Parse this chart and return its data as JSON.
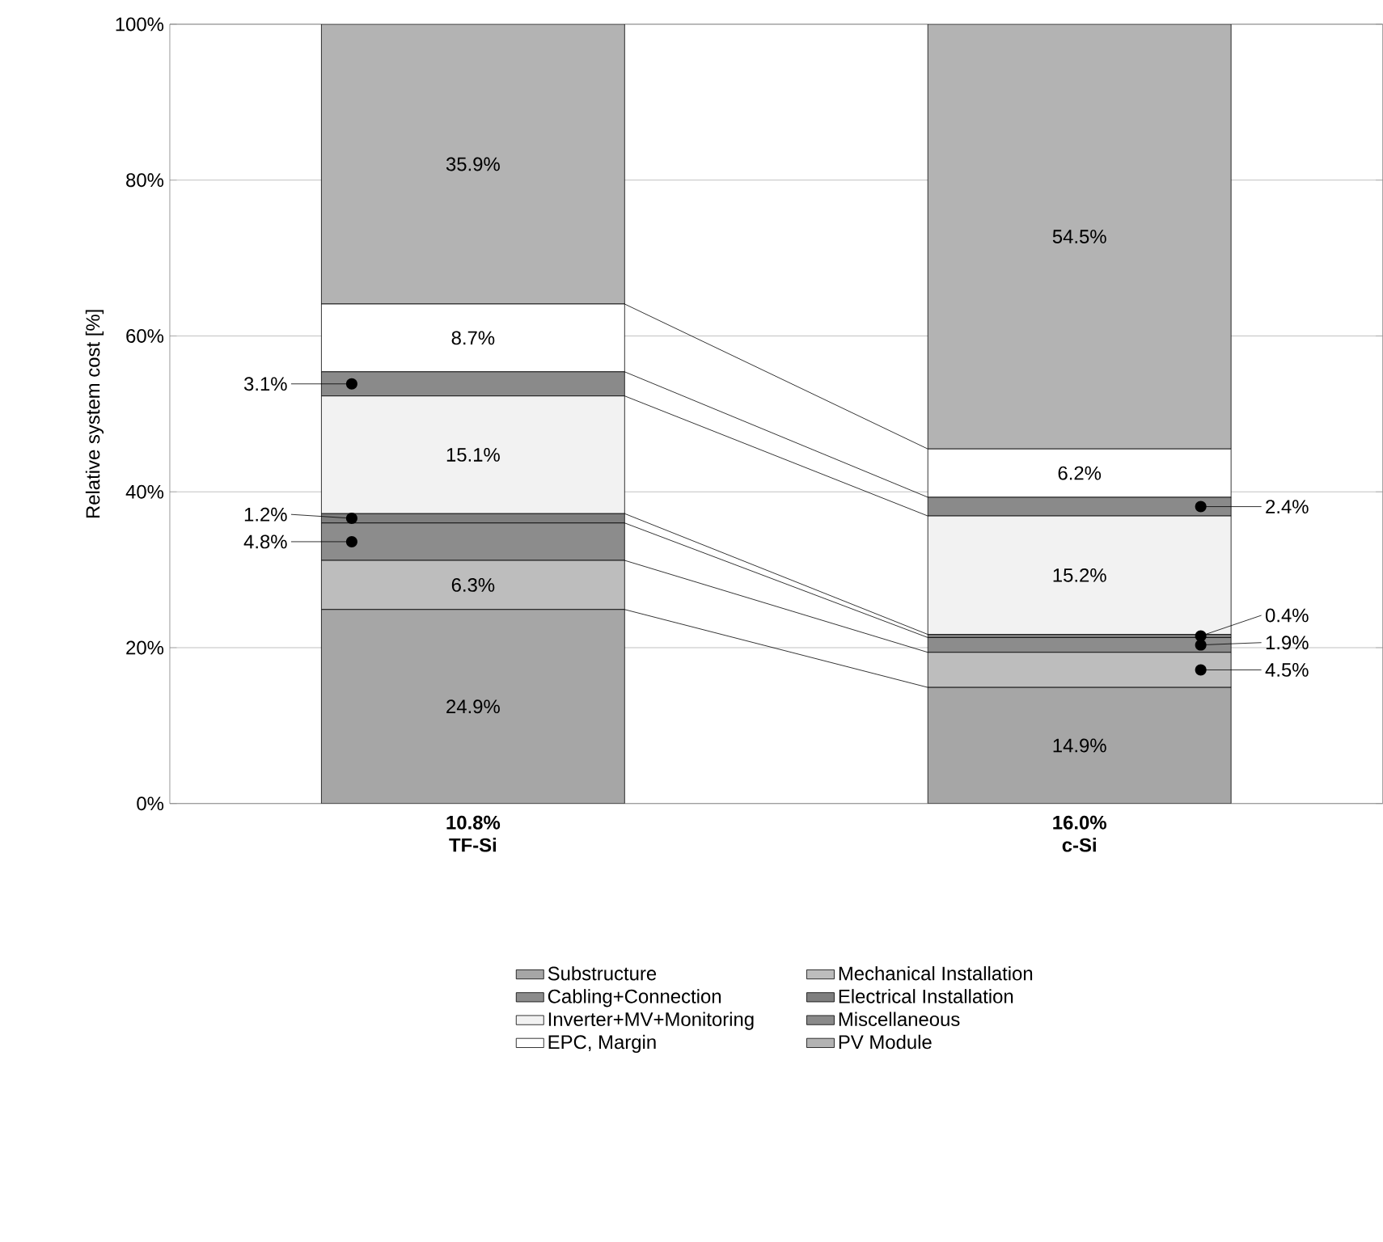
{
  "chart_data": {
    "type": "bar",
    "stacked": true,
    "categories": [
      "TF-Si",
      "c-Si"
    ],
    "annotations": [
      "10.8%",
      "16.0%"
    ],
    "ylabel": "Relative system cost [%]",
    "ylim": [
      0,
      100
    ],
    "yticks": [
      {
        "value": 0,
        "label": "0%"
      },
      {
        "value": 20,
        "label": "20%"
      },
      {
        "value": 40,
        "label": "40%"
      },
      {
        "value": 60,
        "label": "60%"
      },
      {
        "value": 80,
        "label": "80%"
      },
      {
        "value": 100,
        "label": "100%"
      }
    ],
    "grid": "y",
    "legend": "bottom",
    "series": [
      {
        "name": "Substructure",
        "color": "#a6a6a6",
        "values": [
          24.9,
          14.9
        ],
        "value_labels": [
          "24.9%",
          "14.9%"
        ]
      },
      {
        "name": "Mechanical Installation",
        "color": "#bdbdbd",
        "values": [
          6.3,
          4.5
        ],
        "value_labels": [
          "6.3%",
          "4.5%"
        ]
      },
      {
        "name": "Cabling+Connection",
        "color": "#8c8c8c",
        "values": [
          4.8,
          1.9
        ],
        "value_labels": [
          "4.8%",
          "1.9%"
        ]
      },
      {
        "name": "Electrical Installation",
        "color": "#7f7f7f",
        "values": [
          1.2,
          0.4
        ],
        "value_labels": [
          "1.2%",
          "0.4%"
        ]
      },
      {
        "name": "Inverter+MV+Monitoring",
        "color": "#f2f2f2",
        "values": [
          15.1,
          15.2
        ],
        "value_labels": [
          "15.1%",
          "15.2%"
        ]
      },
      {
        "name": "Miscellaneous",
        "color": "#8a8a8a",
        "values": [
          3.1,
          2.4
        ],
        "value_labels": [
          "3.1%",
          "2.4%"
        ]
      },
      {
        "name": "EPC, Margin",
        "color": "#ffffff",
        "values": [
          8.7,
          6.2
        ],
        "value_labels": [
          "8.7%",
          "6.2%"
        ]
      },
      {
        "name": "PV Module",
        "color": "#b3b3b3",
        "values": [
          35.9,
          54.5
        ],
        "value_labels": [
          "35.9%",
          "54.5%"
        ]
      }
    ]
  }
}
